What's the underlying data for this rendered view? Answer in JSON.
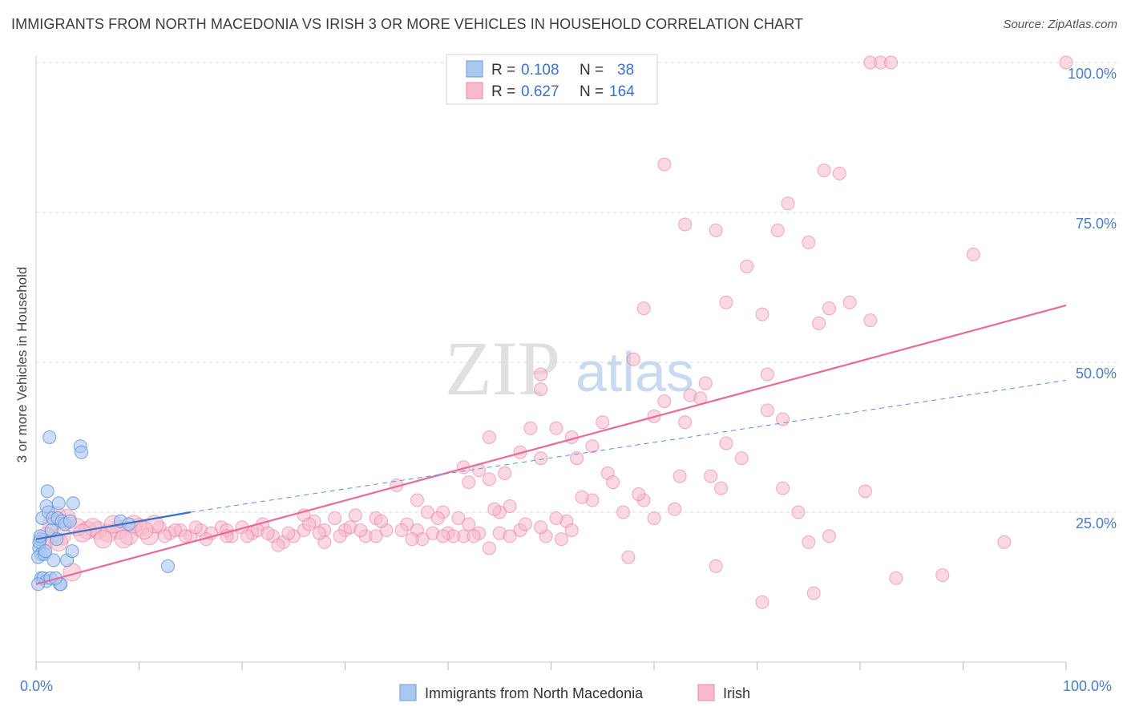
{
  "title": "IMMIGRANTS FROM NORTH MACEDONIA VS IRISH 3 OR MORE VEHICLES IN HOUSEHOLD CORRELATION CHART",
  "source": "Source: ZipAtlas.com",
  "watermark": {
    "zip": "ZIP",
    "atlas": "atlas"
  },
  "legend": {
    "r_label": "R =",
    "n_label": "N =",
    "rows": [
      {
        "r": "0.108",
        "n": "38",
        "color": "#a8c8f0"
      },
      {
        "r": "0.627",
        "n": "164",
        "color": "#f7b9cb"
      }
    ]
  },
  "chart_data": {
    "type": "scatter",
    "xlabel": "",
    "ylabel": "3 or more Vehicles in Household",
    "xlim": [
      0,
      100
    ],
    "ylim": [
      0,
      100
    ],
    "x_tick_labels": [
      "0.0%",
      "100.0%"
    ],
    "y_tick_labels": [
      "25.0%",
      "50.0%",
      "75.0%",
      "100.0%"
    ],
    "y_ticks": [
      25,
      50,
      75,
      100
    ],
    "grid": "horizontal dashed",
    "colors": {
      "blue": "#5b8fd9",
      "blue_fill": "#a8c8f0",
      "pink": "#e86b9a",
      "pink_fill": "#f7b9cb",
      "tick_label": "#4a7cc7"
    },
    "series": [
      {
        "name": "Immigrants from North Macedonia",
        "trend": {
          "x0": 0,
          "y0": 20.5,
          "x1": 15,
          "y1": 25.0,
          "dashed_to_x": 100,
          "dashed_to_y": 47.0
        },
        "points": [
          [
            0.3,
            19
          ],
          [
            0.5,
            18
          ],
          [
            0.4,
            20.5
          ],
          [
            0.6,
            24
          ],
          [
            0.2,
            17.5
          ],
          [
            0.8,
            18
          ],
          [
            1.0,
            26
          ],
          [
            1.2,
            25
          ],
          [
            1.1,
            28.5
          ],
          [
            1.3,
            37.5
          ],
          [
            1.5,
            22
          ],
          [
            1.6,
            24
          ],
          [
            1.7,
            17
          ],
          [
            2.0,
            20.5
          ],
          [
            2.1,
            24
          ],
          [
            2.2,
            26.5
          ],
          [
            2.3,
            13
          ],
          [
            2.4,
            13
          ],
          [
            2.5,
            23.5
          ],
          [
            2.8,
            23
          ],
          [
            3.0,
            17
          ],
          [
            3.3,
            23.5
          ],
          [
            3.5,
            18.5
          ],
          [
            3.6,
            26.5
          ],
          [
            4.3,
            36
          ],
          [
            4.4,
            35
          ],
          [
            0.5,
            14
          ],
          [
            0.7,
            14
          ],
          [
            1.0,
            13.5
          ],
          [
            1.4,
            14
          ],
          [
            1.9,
            14
          ],
          [
            0.3,
            20
          ],
          [
            0.4,
            21
          ],
          [
            0.9,
            18.5
          ],
          [
            8.2,
            23.5
          ],
          [
            9.0,
            23
          ],
          [
            12.8,
            16
          ],
          [
            0.2,
            13
          ]
        ]
      },
      {
        "name": "Irish",
        "trend": {
          "x0": 0,
          "y0": 13.0,
          "x1": 100,
          "y1": 59.5
        },
        "points": [
          [
            81,
            100
          ],
          [
            82,
            100
          ],
          [
            83,
            100
          ],
          [
            100,
            100
          ],
          [
            61,
            83
          ],
          [
            76.5,
            82
          ],
          [
            78,
            81.5
          ],
          [
            73,
            76.5
          ],
          [
            63,
            73
          ],
          [
            66,
            72
          ],
          [
            72,
            72
          ],
          [
            75,
            70
          ],
          [
            91,
            68
          ],
          [
            69,
            66
          ],
          [
            67,
            60
          ],
          [
            79,
            60
          ],
          [
            59,
            59
          ],
          [
            70.5,
            58
          ],
          [
            77,
            59
          ],
          [
            81,
            57
          ],
          [
            76,
            56.5
          ],
          [
            58,
            50.5
          ],
          [
            49,
            48
          ],
          [
            71,
            48
          ],
          [
            49,
            45.5
          ],
          [
            61,
            43.5
          ],
          [
            63.5,
            44.5
          ],
          [
            64.5,
            44
          ],
          [
            65,
            46.5
          ],
          [
            71,
            42
          ],
          [
            72.5,
            40.5
          ],
          [
            60,
            41
          ],
          [
            55,
            40
          ],
          [
            63,
            40
          ],
          [
            48,
            39
          ],
          [
            50.5,
            39
          ],
          [
            52,
            37.5
          ],
          [
            44,
            37.5
          ],
          [
            67,
            36.5
          ],
          [
            54,
            36
          ],
          [
            47,
            35
          ],
          [
            52.5,
            34
          ],
          [
            68.5,
            34
          ],
          [
            49,
            34
          ],
          [
            41.5,
            32.5
          ],
          [
            43,
            32
          ],
          [
            45.5,
            31.5
          ],
          [
            55.5,
            31.5
          ],
          [
            44,
            30.5
          ],
          [
            62.5,
            31
          ],
          [
            65.5,
            31
          ],
          [
            42,
            30
          ],
          [
            56,
            30
          ],
          [
            66.5,
            29
          ],
          [
            72.5,
            29
          ],
          [
            80.5,
            28.5
          ],
          [
            35,
            29.5
          ],
          [
            37,
            27
          ],
          [
            54,
            27
          ],
          [
            59,
            27
          ],
          [
            46,
            26
          ],
          [
            45,
            25
          ],
          [
            53,
            27.5
          ],
          [
            57,
            25
          ],
          [
            62,
            25.5
          ],
          [
            74,
            25
          ],
          [
            60,
            24
          ],
          [
            38,
            25
          ],
          [
            39.5,
            25
          ],
          [
            44.5,
            25.5
          ],
          [
            39,
            24
          ],
          [
            41,
            24
          ],
          [
            51.5,
            23.5
          ],
          [
            36,
            23
          ],
          [
            42,
            23
          ],
          [
            33,
            24
          ],
          [
            31,
            24.5
          ],
          [
            29,
            24
          ],
          [
            27,
            23.5
          ],
          [
            26,
            24.5
          ],
          [
            22,
            23
          ],
          [
            20,
            22.5
          ],
          [
            18,
            22.5
          ],
          [
            16,
            22
          ],
          [
            14,
            22
          ],
          [
            12,
            22.5
          ],
          [
            10,
            22.5
          ],
          [
            8,
            22
          ],
          [
            6,
            22
          ],
          [
            4,
            22.5
          ],
          [
            3,
            24
          ],
          [
            2,
            24.5
          ],
          [
            1.5,
            23
          ],
          [
            1,
            21
          ],
          [
            0.8,
            20
          ],
          [
            2.5,
            21
          ],
          [
            5,
            22
          ],
          [
            7,
            21.5
          ],
          [
            9,
            21
          ],
          [
            11,
            21
          ],
          [
            13,
            21.5
          ],
          [
            15,
            21
          ],
          [
            17,
            21.5
          ],
          [
            19,
            21
          ],
          [
            21,
            21.5
          ],
          [
            23,
            21
          ],
          [
            24,
            20
          ],
          [
            25,
            21
          ],
          [
            26,
            22
          ],
          [
            28,
            22
          ],
          [
            30,
            22
          ],
          [
            32,
            21
          ],
          [
            34,
            22
          ],
          [
            35.5,
            22
          ],
          [
            37,
            22
          ],
          [
            38.5,
            21.5
          ],
          [
            40,
            21.5
          ],
          [
            41.5,
            21
          ],
          [
            43,
            21.5
          ],
          [
            45,
            21.5
          ],
          [
            47,
            22
          ],
          [
            28,
            20
          ],
          [
            23.5,
            19.5
          ],
          [
            37.5,
            20.5
          ],
          [
            40.5,
            21
          ],
          [
            46,
            21
          ],
          [
            49.5,
            21
          ],
          [
            52,
            22
          ],
          [
            51,
            20.5
          ],
          [
            30.5,
            22.5
          ],
          [
            33.5,
            23.5
          ],
          [
            26.5,
            23
          ],
          [
            21.5,
            22
          ],
          [
            18.5,
            22
          ],
          [
            15.5,
            22.5
          ],
          [
            13.5,
            22
          ],
          [
            11.5,
            23
          ],
          [
            9.5,
            23
          ],
          [
            7.5,
            23
          ],
          [
            5.5,
            22.5
          ],
          [
            57.5,
            17.5
          ],
          [
            66,
            16
          ],
          [
            75,
            20
          ],
          [
            83.5,
            14
          ],
          [
            94,
            20
          ],
          [
            88,
            14.5
          ],
          [
            70.5,
            10
          ],
          [
            75.5,
            11.5
          ],
          [
            3.5,
            15
          ],
          [
            2.2,
            20
          ],
          [
            4.5,
            21.5
          ],
          [
            6.5,
            20.5
          ],
          [
            8.5,
            20.5
          ],
          [
            10.5,
            22
          ],
          [
            12.5,
            21
          ],
          [
            14.5,
            21
          ],
          [
            16.5,
            20.5
          ],
          [
            18.5,
            21
          ],
          [
            20.5,
            21
          ],
          [
            22.5,
            21.5
          ],
          [
            24.5,
            21.5
          ],
          [
            27.5,
            21.5
          ],
          [
            29.5,
            21
          ],
          [
            31.5,
            22
          ],
          [
            33,
            21
          ],
          [
            36.5,
            20.5
          ],
          [
            39.5,
            21
          ],
          [
            42.5,
            21
          ],
          [
            44,
            19
          ],
          [
            47.5,
            23
          ],
          [
            49,
            22.5
          ],
          [
            50.5,
            24
          ],
          [
            77,
            21
          ],
          [
            58.5,
            28
          ]
        ]
      }
    ]
  },
  "bottom_legend": [
    "Immigrants from North Macedonia",
    "Irish"
  ]
}
